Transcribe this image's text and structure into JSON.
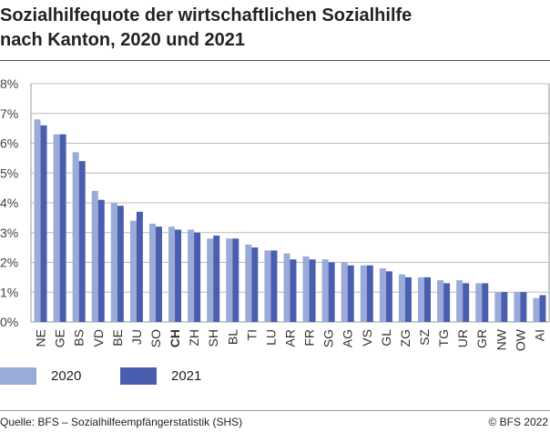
{
  "title_line1": "Sozialhilfequote der wirtschaftlichen Sozialhilfe",
  "title_line2": "nach Kanton, 2020 und 2021",
  "source": "Quelle: BFS – Sozialhilfeempfängerstatistik (SHS)",
  "copyright": "© BFS 2022",
  "chart_data": {
    "type": "bar",
    "categories": [
      "NE",
      "GE",
      "BS",
      "VD",
      "BE",
      "JU",
      "SO",
      "CH",
      "ZH",
      "SH",
      "BL",
      "TI",
      "LU",
      "AR",
      "FR",
      "SG",
      "AG",
      "VS",
      "GL",
      "ZG",
      "SZ",
      "TG",
      "UR",
      "GR",
      "NW",
      "OW",
      "AI"
    ],
    "highlight_category": "CH",
    "series": [
      {
        "name": "2020",
        "color": "#9aaad9",
        "values": [
          6.8,
          6.3,
          5.7,
          4.4,
          4.0,
          3.4,
          3.3,
          3.2,
          3.1,
          2.8,
          2.8,
          2.6,
          2.4,
          2.3,
          2.2,
          2.1,
          2.0,
          1.9,
          1.8,
          1.6,
          1.5,
          1.4,
          1.4,
          1.3,
          1.0,
          1.0,
          0.8
        ]
      },
      {
        "name": "2021",
        "color": "#4a5eb0",
        "values": [
          6.6,
          6.3,
          5.4,
          4.1,
          3.9,
          3.7,
          3.2,
          3.1,
          3.0,
          2.9,
          2.8,
          2.5,
          2.4,
          2.1,
          2.1,
          2.0,
          1.9,
          1.9,
          1.7,
          1.5,
          1.5,
          1.3,
          1.3,
          1.3,
          1.0,
          1.0,
          0.9
        ]
      }
    ],
    "yticks": [
      "0%",
      "1%",
      "2%",
      "3%",
      "4%",
      "5%",
      "6%",
      "7%",
      "8%"
    ],
    "ylim": [
      0,
      8
    ],
    "grid": true,
    "legend": "bottom-left"
  }
}
